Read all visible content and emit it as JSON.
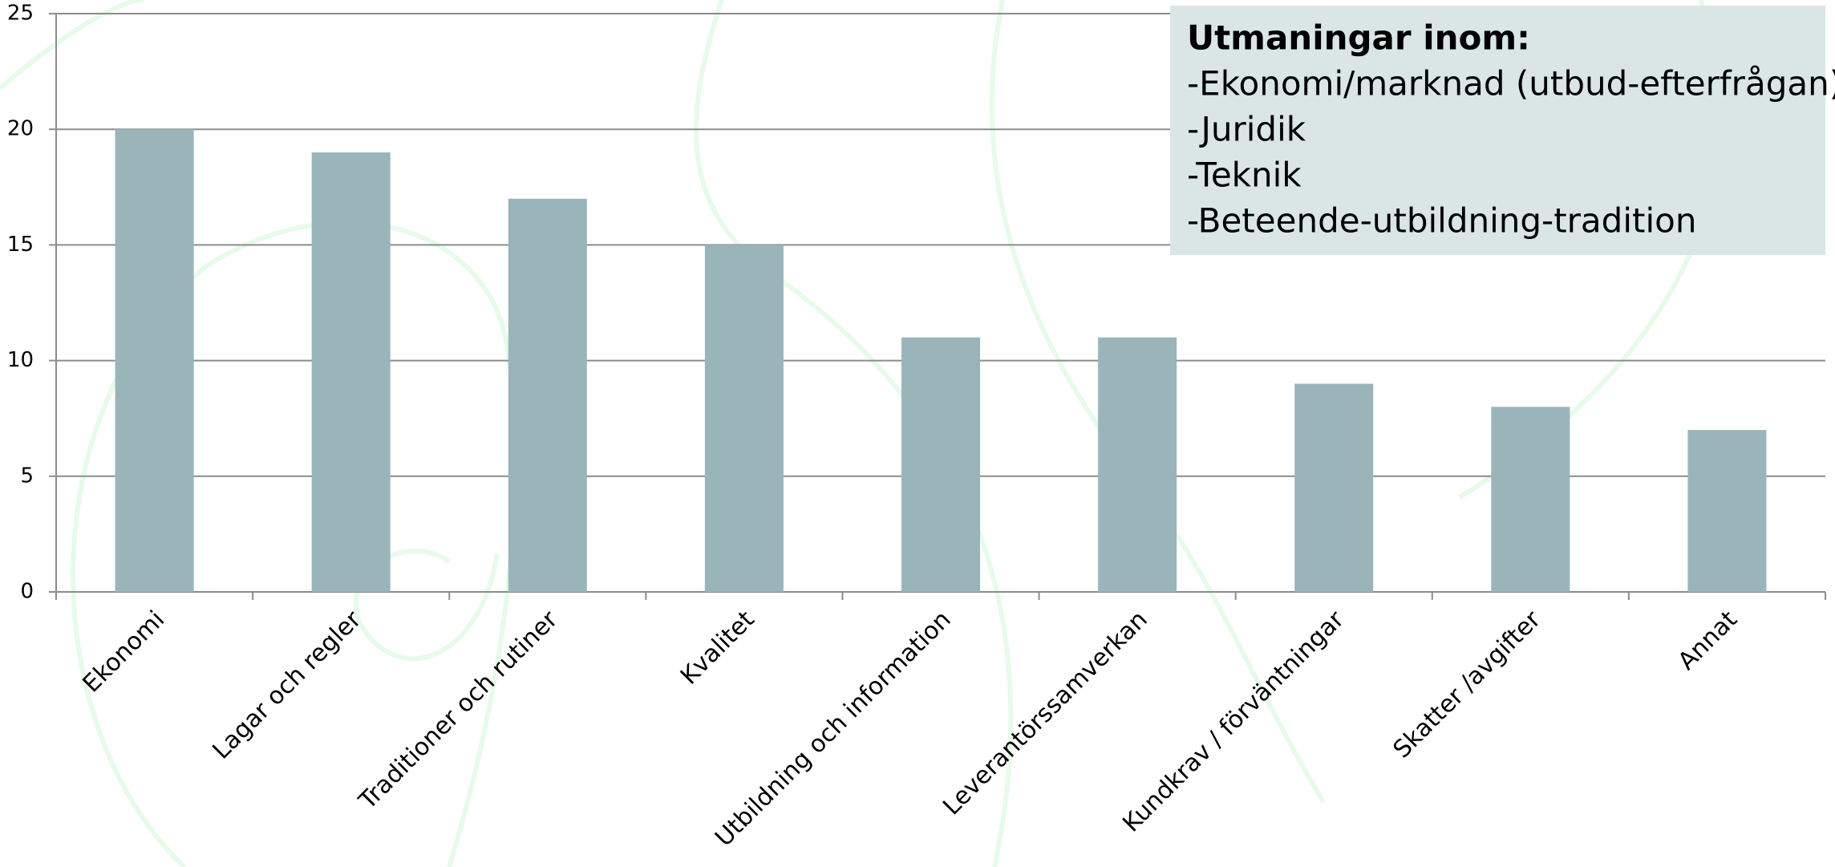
{
  "chart_data": {
    "type": "bar",
    "categories": [
      "Ekonomi",
      "Lagar och regler",
      "Traditioner och rutiner",
      "Kvalitet",
      "Utbildning och information",
      "Leverantörssamverkan",
      "Kundkrav / förväntningar",
      "Skatter /avgifter",
      "Annat"
    ],
    "values": [
      20,
      19,
      17,
      15,
      11,
      11,
      9,
      8,
      7
    ],
    "color": "#9ab5ba",
    "ylim": [
      0,
      25
    ],
    "yticks": [
      0,
      5,
      10,
      15,
      20,
      25
    ],
    "grid": true,
    "annotation": {
      "title": "Utmaningar inom:",
      "lines": [
        "-Ekonomi/marknad (utbud-efterfrågan)",
        "-Juridik",
        "-Teknik",
        "-Beteende-utbildning-tradition"
      ]
    }
  }
}
